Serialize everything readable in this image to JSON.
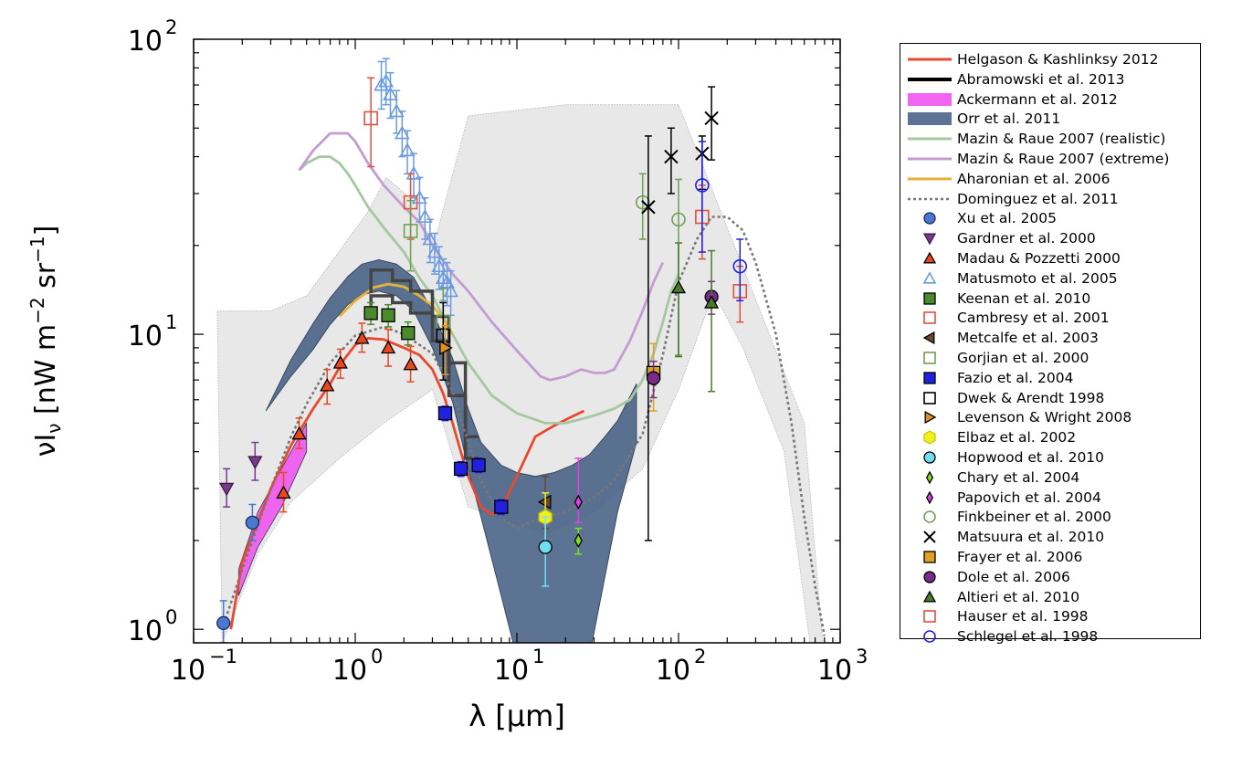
{
  "chart_data": {
    "type": "scatter",
    "xscale": "log",
    "yscale": "log",
    "xlabel": "λ [μm]",
    "ylabel": "νI_ν [nW m^-2 sr^-1]",
    "xlim": [
      0.1,
      1000
    ],
    "ylim": [
      0.9,
      100
    ],
    "xticks": [
      {
        "value": 0.1,
        "base": "10",
        "exp": "−1"
      },
      {
        "value": 1,
        "base": "10",
        "exp": "0"
      },
      {
        "value": 10,
        "base": "10",
        "exp": "1"
      },
      {
        "value": 100,
        "base": "10",
        "exp": "2"
      },
      {
        "value": 1000,
        "base": "10",
        "exp": "3"
      }
    ],
    "yticks": [
      {
        "value": 1,
        "base": "10",
        "exp": "0"
      },
      {
        "value": 10,
        "base": "10",
        "exp": "1"
      },
      {
        "value": 100,
        "base": "10",
        "exp": "2"
      }
    ],
    "grid": false,
    "legend_position": "outside-right",
    "background_envelope": [
      [
        0.14,
        12
      ],
      [
        0.25,
        12
      ],
      [
        0.3,
        12
      ],
      [
        0.5,
        13.5
      ],
      [
        1.2,
        26
      ],
      [
        1.55,
        34
      ],
      [
        1.9,
        31
      ],
      [
        2.3,
        28
      ],
      [
        2.8,
        22
      ],
      [
        3.2,
        22
      ],
      [
        5,
        55
      ],
      [
        20,
        60
      ],
      [
        100,
        60
      ],
      [
        320,
        12
      ],
      [
        600,
        5
      ],
      [
        780,
        0.9
      ],
      [
        650,
        0.9
      ],
      [
        450,
        4
      ],
      [
        250,
        9
      ],
      [
        175,
        13
      ],
      [
        150,
        12
      ],
      [
        100,
        6.5
      ],
      [
        60,
        3.5
      ],
      [
        30,
        2.5
      ],
      [
        15,
        2.1
      ],
      [
        5,
        2.6
      ],
      [
        3,
        6.5
      ],
      [
        1.5,
        5
      ],
      [
        0.8,
        3.8
      ],
      [
        0.4,
        2.7
      ],
      [
        0.25,
        1.8
      ],
      [
        0.15,
        0.9
      ]
    ],
    "series": [
      {
        "name": "Helgason & Kashlinksy 2012",
        "kind": "line",
        "color": "#e8482f",
        "width": 2.8,
        "x": [
          0.17,
          0.2,
          0.3,
          0.4,
          0.55,
          0.7,
          0.85,
          1.0,
          1.2,
          1.5,
          2.0,
          2.5,
          3.0,
          3.5,
          4.0,
          4.5,
          5.0,
          6.0,
          7.0,
          8.0,
          10,
          13,
          17,
          21,
          26
        ],
        "y": [
          1.0,
          1.7,
          3.0,
          4.2,
          5.6,
          6.8,
          8.2,
          9.2,
          9.7,
          9.6,
          9.0,
          8.5,
          7.6,
          6.3,
          5.0,
          4.0,
          3.3,
          2.6,
          2.45,
          2.55,
          3.3,
          4.5,
          4.9,
          5.2,
          5.5
        ]
      },
      {
        "name": "Abramowski et al. 2013",
        "kind": "step",
        "color": "#444444",
        "width": 3.5,
        "steps": [
          {
            "x": [
              1.25,
              1.25,
              1.7,
              1.7,
              2.2,
              2.2,
              3.0,
              3.0,
              3.8,
              3.8,
              4.8,
              4.8,
              5.8
            ],
            "y": [
              13.8,
              16.5,
              16.5,
              15.2,
              15.2,
              14.0,
              14.0,
              11.5,
              11.5,
              8.0,
              8.0,
              4.5,
              4.5
            ]
          },
          {
            "x": [
              1.25,
              1.25,
              1.7,
              1.7,
              2.2,
              2.2,
              3.0,
              3.0,
              3.8,
              3.8,
              4.8,
              4.8,
              5.8
            ],
            "y": [
              12.5,
              13.5,
              13.5,
              12.8,
              12.8,
              11.8,
              11.8,
              9.5,
              9.5,
              6.2,
              6.2,
              3.8,
              3.8
            ]
          }
        ]
      },
      {
        "name": "Ackermann et al. 2012",
        "kind": "band",
        "color": "#ee55ee",
        "opacity": 0.9,
        "x": [
          0.19,
          0.25,
          0.35,
          0.5
        ],
        "upper": [
          1.6,
          2.5,
          3.5,
          5.0
        ],
        "lower": [
          1.3,
          1.9,
          2.6,
          4.0
        ]
      },
      {
        "name": "Orr et al. 2011",
        "kind": "band",
        "color": "#405a80",
        "opacity": 0.85,
        "x": [
          0.28,
          0.4,
          0.55,
          0.7,
          0.9,
          1.1,
          1.4,
          1.8,
          2.3,
          3.0,
          4.0,
          5.0,
          6.0,
          8.0,
          10,
          13,
          17,
          22,
          28,
          35,
          42,
          55
        ],
        "upper": [
          5.5,
          8.2,
          10.9,
          13.3,
          15.7,
          17.3,
          17.9,
          17.3,
          15.6,
          12.0,
          8.3,
          5.6,
          4.3,
          3.6,
          3.4,
          3.3,
          3.4,
          3.6,
          3.9,
          4.5,
          5.1,
          6.8
        ],
        "lower": [
          5.5,
          7.2,
          8.9,
          10.8,
          12.6,
          13.6,
          14.0,
          13.5,
          12.0,
          9.0,
          5.9,
          3.5,
          2.4,
          1.3,
          0.8,
          0.6,
          0.55,
          0.6,
          0.8,
          1.5,
          2.5,
          4.3
        ]
      },
      {
        "name": "Mazin & Raue 2007 (realistic)",
        "kind": "line",
        "color": "#a5c8a0",
        "width": 2.8,
        "x": [
          0.45,
          0.5,
          0.6,
          0.7,
          0.8,
          0.9,
          1.0,
          1.2,
          1.5,
          2.0,
          2.5,
          3.0,
          4.0,
          5.0,
          7.0,
          10,
          15,
          20,
          30,
          40,
          50,
          60,
          70,
          80,
          90,
          100
        ],
        "y": [
          36,
          38,
          40,
          40,
          38,
          35,
          32,
          27,
          23,
          19,
          15.5,
          13.5,
          10,
          8,
          6.2,
          5.4,
          5.0,
          5.0,
          5.3,
          5.6,
          6.0,
          7.0,
          8.6,
          11,
          14,
          16
        ]
      },
      {
        "name": "Mazin & Raue 2007 (extreme)",
        "kind": "line",
        "color": "#c49cd2",
        "width": 2.8,
        "x": [
          0.45,
          0.55,
          0.7,
          0.8,
          0.9,
          1.0,
          1.2,
          1.5,
          2.0,
          2.5,
          3.0,
          4.0,
          5.0,
          7.0,
          10,
          14,
          16,
          20,
          25,
          30,
          35,
          40,
          50,
          60,
          70,
          80
        ],
        "y": [
          36,
          42,
          48,
          48,
          48,
          45,
          38,
          32,
          27,
          24,
          20,
          16,
          14,
          11,
          8.8,
          7.2,
          7.0,
          7.2,
          7.6,
          7.4,
          7.4,
          7.6,
          9.5,
          12,
          15,
          17.5
        ]
      },
      {
        "name": "Aharonian et al. 2006",
        "kind": "line",
        "color": "#e5b337",
        "width": 2.8,
        "x": [
          0.8,
          1.0,
          1.3,
          1.6,
          2.0,
          2.5,
          3.0,
          3.5,
          4.0
        ],
        "y": [
          11.5,
          13.0,
          14.4,
          14.8,
          14.5,
          13.5,
          12.5,
          11.3,
          10.0
        ]
      },
      {
        "name": "Dominguez et al. 2011",
        "kind": "dotted",
        "color": "#777777",
        "width": 2.6,
        "x": [
          0.15,
          0.2,
          0.3,
          0.4,
          0.5,
          0.7,
          1.0,
          1.5,
          2.0,
          3.0,
          4.0,
          5.0,
          6.0,
          8.0,
          10,
          12,
          15,
          20,
          30,
          40,
          60,
          80,
          100,
          130,
          160,
          200,
          250,
          300,
          400,
          500,
          600,
          700,
          800
        ],
        "y": [
          1.0,
          1.6,
          3.0,
          4.5,
          5.8,
          8.0,
          9.9,
          10.6,
          10.0,
          8.6,
          6.4,
          4.3,
          3.2,
          2.4,
          2.2,
          2.3,
          2.4,
          2.5,
          2.8,
          3.2,
          4.6,
          8.5,
          15,
          21,
          25,
          25,
          22.5,
          17.5,
          10,
          5.0,
          2.4,
          1.4,
          0.95
        ]
      },
      {
        "name": "Xu et al. 2005",
        "kind": "points",
        "marker": "circle",
        "color": "#4a78d0",
        "stroke": "#1a2a60",
        "x": [
          0.153,
          0.231
        ],
        "y": [
          1.05,
          2.3
        ],
        "err_lo": [
          0.15,
          0.3
        ],
        "err_hi": [
          0.2,
          0.35
        ]
      },
      {
        "name": "Gardner et al. 2000",
        "kind": "points",
        "marker": "triangle-down",
        "color": "#7a3a8a",
        "stroke": "#3a1a4a",
        "x": [
          0.16,
          0.24
        ],
        "y": [
          3.0,
          3.7
        ],
        "err_lo": [
          0.4,
          0.5
        ],
        "err_hi": [
          0.5,
          0.6
        ]
      },
      {
        "name": "Madau & Pozzetti 2000",
        "kind": "points",
        "marker": "triangle-up",
        "color": "#e84820",
        "stroke": "#000",
        "x": [
          0.36,
          0.45,
          0.67,
          0.81,
          1.1,
          1.6,
          2.2
        ],
        "y": [
          2.9,
          4.6,
          6.7,
          8.0,
          9.7,
          9.0,
          7.9
        ],
        "err_lo": [
          0.4,
          0.5,
          0.9,
          0.9,
          1.0,
          1.2,
          1.0
        ],
        "err_hi": [
          0.5,
          0.6,
          0.9,
          0.9,
          1.2,
          1.4,
          1.2
        ]
      },
      {
        "name": "Matusmoto et al. 2005",
        "kind": "points",
        "marker": "triangle-up-open",
        "color": "#6a9ae0",
        "stroke": "#6a9ae0",
        "x": [
          1.45,
          1.55,
          1.65,
          1.8,
          1.95,
          2.1,
          2.3,
          2.5,
          2.7,
          2.9,
          3.1,
          3.3,
          3.5,
          3.7,
          3.9
        ],
        "y": [
          70,
          72,
          65,
          57,
          48,
          42,
          35,
          29,
          25,
          21,
          19,
          17,
          15.5,
          15,
          14
        ],
        "err_lo": [
          12,
          12,
          11,
          9,
          8,
          7,
          6,
          5,
          4,
          3.5,
          3,
          2.8,
          2.5,
          2.5,
          2.4
        ],
        "err_hi": [
          14,
          14,
          12,
          10,
          9,
          7,
          6,
          5,
          4,
          3.5,
          3,
          2.8,
          2.5,
          2.5,
          2.4
        ]
      },
      {
        "name": "Keenan et al. 2010",
        "kind": "points",
        "marker": "square",
        "color": "#4a8a2a",
        "stroke": "#000",
        "x": [
          1.25,
          1.6,
          2.12
        ],
        "y": [
          11.8,
          11.6,
          10.1
        ],
        "err_lo": [
          1.0,
          1.0,
          0.9
        ],
        "err_hi": [
          1.0,
          1.0,
          0.9
        ]
      },
      {
        "name": "Cambresy et al. 2001",
        "kind": "points",
        "marker": "square-open",
        "color": "#e05040",
        "stroke": "#e05040",
        "x": [
          1.25,
          2.2
        ],
        "y": [
          54,
          28
        ],
        "err_lo": [
          17,
          7
        ],
        "err_hi": [
          20,
          7
        ]
      },
      {
        "name": "Metcalfe et al. 2003",
        "kind": "points",
        "marker": "triangle-left",
        "color": "#6a4a2a",
        "stroke": "#000",
        "x": [
          15
        ],
        "y": [
          2.7
        ],
        "err_lo": [
          0.5
        ],
        "err_hi": [
          0.6
        ]
      },
      {
        "name": "Gorjian et al. 2000",
        "kind": "points",
        "marker": "square-open",
        "color": "#70a050",
        "stroke": "#70a050",
        "x": [
          2.2,
          3.5
        ],
        "y": [
          22.4,
          11.0
        ],
        "err_lo": [
          6,
          3.3
        ],
        "err_hi": [
          6,
          3.3
        ]
      },
      {
        "name": "Fazio et al. 2004",
        "kind": "points",
        "marker": "square",
        "color": "#2020e0",
        "stroke": "#000",
        "x": [
          3.6,
          4.5,
          5.8,
          8.0
        ],
        "y": [
          5.4,
          3.5,
          3.6,
          2.6
        ],
        "err_lo": [
          0.3,
          0.2,
          0.2,
          0.15
        ],
        "err_hi": [
          0.3,
          0.2,
          0.2,
          0.15
        ]
      },
      {
        "name": "Dwek & Arendt 1998",
        "kind": "points",
        "marker": "square-open",
        "color": "#000000",
        "stroke": "#000000",
        "x": [
          3.5
        ],
        "y": [
          9.9
        ],
        "err_lo": [
          2.9
        ],
        "err_hi": [
          2.9
        ]
      },
      {
        "name": "Levenson & Wright 2008",
        "kind": "points",
        "marker": "triangle-right",
        "color": "#e09020",
        "stroke": "#000",
        "x": [
          3.6
        ],
        "y": [
          9.0
        ],
        "err_lo": [
          1.7
        ],
        "err_hi": [
          1.7
        ]
      },
      {
        "name": "Elbaz et al. 2002",
        "kind": "points",
        "marker": "hexagon",
        "color": "#f0f020",
        "stroke": "#c8c800",
        "x": [
          15
        ],
        "y": [
          2.4
        ],
        "err_lo": [
          0.5
        ],
        "err_hi": [
          0.5
        ]
      },
      {
        "name": "Hopwood et al. 2010",
        "kind": "points",
        "marker": "circle",
        "color": "#70e0f0",
        "stroke": "#000",
        "x": [
          15
        ],
        "y": [
          1.9
        ],
        "err_lo": [
          0.5
        ],
        "err_hi": [
          0.5
        ]
      },
      {
        "name": "Chary et al. 2004",
        "kind": "points",
        "marker": "diamond-thin",
        "color": "#80e020",
        "stroke": "#000",
        "x": [
          24
        ],
        "y": [
          2.0
        ],
        "err_lo": [
          0.2
        ],
        "err_hi": [
          0.2
        ]
      },
      {
        "name": "Papovich et al. 2004",
        "kind": "points",
        "marker": "diamond-thin",
        "color": "#e040e0",
        "stroke": "#000",
        "x": [
          24
        ],
        "y": [
          2.7
        ],
        "err_lo": [
          0.4
        ],
        "err_hi": [
          1.1
        ]
      },
      {
        "name": "Finkbeiner et al. 2000",
        "kind": "points",
        "marker": "circle-open",
        "color": "#70a050",
        "stroke": "#70a050",
        "x": [
          60,
          100
        ],
        "y": [
          28,
          24.5
        ],
        "err_lo": [
          7,
          16
        ],
        "err_hi": [
          7,
          9
        ]
      },
      {
        "name": "Matsuura et al. 2010",
        "kind": "points",
        "marker": "x",
        "color": "#000000",
        "stroke": "#000000",
        "x": [
          65,
          90,
          140,
          160
        ],
        "y": [
          27,
          40,
          41,
          54
        ],
        "err_lo": [
          25,
          10,
          10,
          15
        ],
        "err_hi": [
          20,
          10,
          6,
          15
        ]
      },
      {
        "name": "Frayer et al. 2006",
        "kind": "points",
        "marker": "square",
        "color": "#e0a020",
        "stroke": "#000",
        "x": [
          70
        ],
        "y": [
          7.4
        ],
        "err_lo": [
          1.9
        ],
        "err_hi": [
          1.9
        ]
      },
      {
        "name": "Dole et al. 2006",
        "kind": "points",
        "marker": "circle",
        "color": "#7a2a8a",
        "stroke": "#000",
        "x": [
          70,
          160
        ],
        "y": [
          7.1,
          13.4
        ],
        "err_lo": [
          1.0,
          1.7
        ],
        "err_hi": [
          1.0,
          1.7
        ]
      },
      {
        "name": "Altieri et al. 2010",
        "kind": "points",
        "marker": "triangle-up",
        "color": "#4a7a2a",
        "stroke": "#000",
        "x": [
          100,
          160
        ],
        "y": [
          14.4,
          12.8
        ],
        "err_lo": [
          6.0,
          6.4
        ],
        "err_hi": [
          6.0,
          6.4
        ]
      },
      {
        "name": "Hauser et al. 1998",
        "kind": "points",
        "marker": "square-open",
        "color": "#e05040",
        "stroke": "#e05040",
        "x": [
          140,
          240
        ],
        "y": [
          25,
          14
        ],
        "err_lo": [
          7,
          3
        ],
        "err_hi": [
          7,
          3
        ]
      },
      {
        "name": "Schlegel et al. 1998",
        "kind": "points",
        "marker": "circle-open",
        "color": "#2020e0",
        "stroke": "#2020e0",
        "x": [
          140,
          240
        ],
        "y": [
          32,
          17
        ],
        "err_lo": [
          13,
          4
        ],
        "err_hi": [
          13,
          4
        ]
      }
    ]
  }
}
